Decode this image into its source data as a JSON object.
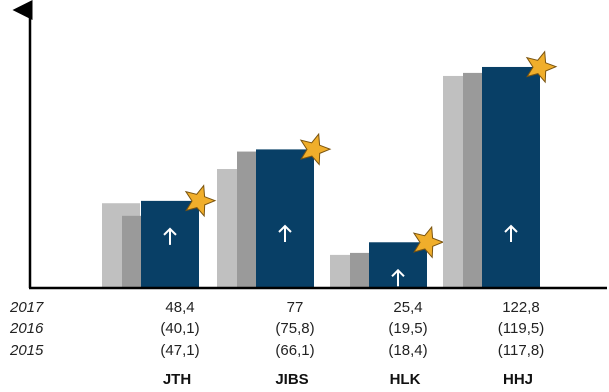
{
  "chart_data": {
    "type": "bar",
    "title": "",
    "xlabel": "",
    "ylabel": "",
    "ylim": [
      0,
      135
    ],
    "grid": false,
    "categories": [
      "JTH",
      "JIBS",
      "HLK",
      "HHJ"
    ],
    "series": [
      {
        "name": "2015",
        "values": [
          47.1,
          66.1,
          18.4,
          117.8
        ],
        "display": [
          "(47,1)",
          "(66,1)",
          "(18,4)",
          "(117,8)"
        ],
        "color": "#c0c0c0"
      },
      {
        "name": "2016",
        "values": [
          40.1,
          75.8,
          19.5,
          119.5
        ],
        "display": [
          "(40,1)",
          "(75,8)",
          "(19,5)",
          "(119,5)"
        ],
        "color": "#9a9a9a"
      },
      {
        "name": "2017",
        "values": [
          48.4,
          77,
          25.4,
          122.8
        ],
        "display": [
          "48,4",
          "77",
          "25,4",
          "122,8"
        ],
        "color": "#083f66"
      }
    ],
    "row_order": [
      "2017",
      "2016",
      "2015"
    ],
    "marker_icons": [
      "up-arrow-icon",
      "star-icon"
    ],
    "star_color": "#f0ae2b",
    "arrow_color": "#ffffff"
  }
}
